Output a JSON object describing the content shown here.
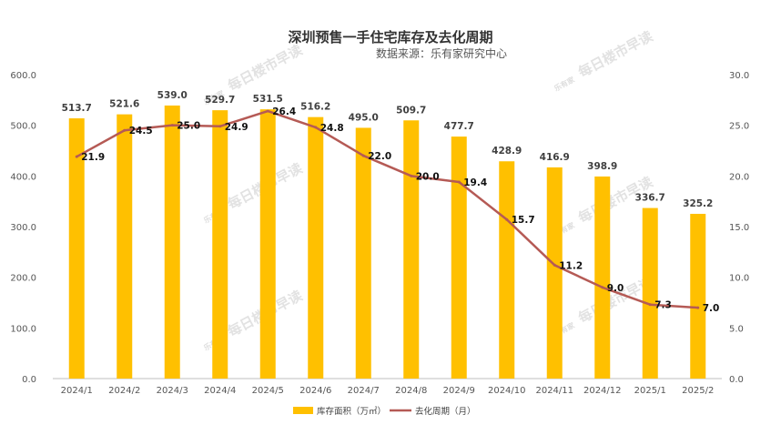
{
  "chart_data": {
    "type": "bar+line",
    "title": "深圳预售一手住宅库存及去化周期",
    "subtitle": "数据来源：乐有家研究中心",
    "categories": [
      "2024/1",
      "2024/2",
      "2024/3",
      "2024/4",
      "2024/5",
      "2024/6",
      "2024/7",
      "2024/8",
      "2024/9",
      "2024/10",
      "2024/11",
      "2024/12",
      "2025/1",
      "2025/2"
    ],
    "series": [
      {
        "name": "库存面积（万㎡）",
        "type": "bar",
        "axis": "left",
        "values": [
          513.7,
          521.6,
          539.0,
          529.7,
          531.5,
          516.2,
          495.0,
          509.7,
          477.7,
          428.9,
          416.9,
          398.9,
          336.7,
          325.2
        ],
        "labels": [
          "513.7",
          "521.6",
          "539.0",
          "529.7",
          "531.5",
          "516.2",
          "495.0",
          "509.7",
          "477.7",
          "428.9",
          "416.9",
          "398.9",
          "336.7",
          "325.2"
        ]
      },
      {
        "name": "去化周期（月）",
        "type": "line",
        "axis": "right",
        "values": [
          21.9,
          24.5,
          25.0,
          24.9,
          26.4,
          24.8,
          22.0,
          20.0,
          19.4,
          15.7,
          11.2,
          9.0,
          7.3,
          7.0
        ],
        "labels": [
          "21.9",
          "24.5",
          "25.0",
          "24.9",
          "26.4",
          "24.8",
          "22.0",
          "20.0",
          "19.4",
          "15.7",
          "11.2",
          "9.0",
          "7.3",
          "7.0"
        ]
      }
    ],
    "y_left": {
      "ylim": [
        0,
        600
      ],
      "ticks": [
        "0.0",
        "100.0",
        "200.0",
        "300.0",
        "400.0",
        "500.0",
        "600.0"
      ]
    },
    "y_right": {
      "ylim": [
        0,
        30
      ],
      "ticks": [
        "0.0",
        "5.0",
        "10.0",
        "15.0",
        "20.0",
        "25.0",
        "30.0"
      ]
    },
    "grid": false,
    "legend": "bottom-center"
  },
  "colors": {
    "bar": "#ffc000",
    "line": "#b55a55",
    "axis": "#bfbfbf"
  },
  "watermark": {
    "text": "每日楼市早读",
    "logo": "乐有家"
  }
}
